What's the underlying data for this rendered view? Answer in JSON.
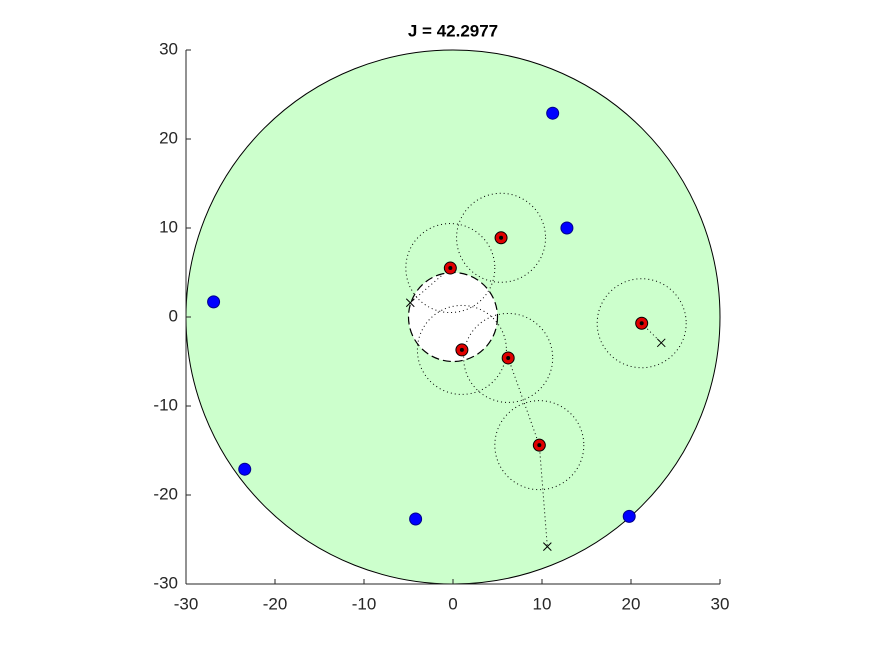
{
  "chart_data": {
    "type": "scatter",
    "title": "J = 42.2977",
    "xlim": [
      -30,
      30
    ],
    "ylim": [
      -30,
      30
    ],
    "xticks": [
      -30,
      -20,
      -10,
      0,
      10,
      20,
      30
    ],
    "yticks": [
      -30,
      -20,
      -10,
      0,
      10,
      20,
      30
    ],
    "region_radius": 30,
    "region_color": "#ccffcc",
    "hole_radius": 5,
    "sensor_radius": 5,
    "paths": {
      "color": "#000000",
      "x": [
        21.2,
        23.4,
        null,
        6.2,
        9.7,
        10.6,
        null,
        -0.3,
        -4.8
      ],
      "y": [
        -0.7,
        -2.9,
        null,
        -4.6,
        -14.4,
        -25.8,
        null,
        5.5,
        1.6
      ]
    },
    "series": [
      {
        "marker": "sensor",
        "color": "#e00000",
        "x": [
          -0.3,
          5.4,
          21.2,
          1.0,
          6.2,
          9.7
        ],
        "y": [
          5.5,
          8.9,
          -0.7,
          -3.7,
          -4.6,
          -14.4
        ]
      },
      {
        "marker": "dot",
        "color": "#0000ff",
        "x": [
          11.2,
          12.8,
          -26.9,
          -23.4,
          -4.2,
          19.8
        ],
        "y": [
          22.9,
          10.0,
          1.7,
          -17.1,
          -22.7,
          -22.4
        ]
      },
      {
        "marker": "cross",
        "color": "#000000",
        "x": [
          -4.8,
          23.4,
          10.6
        ],
        "y": [
          1.6,
          -2.9,
          -25.8
        ]
      }
    ]
  }
}
